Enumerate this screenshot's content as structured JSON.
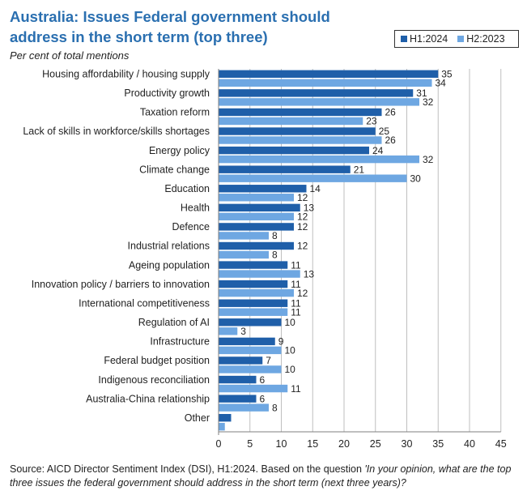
{
  "chart_data": {
    "type": "bar",
    "orientation": "horizontal",
    "title": "Australia: Issues Federal government should address in the short term (top three)",
    "subtitle": "Per cent of total mentions",
    "categories": [
      "Housing affordability / housing supply",
      "Productivity growth",
      "Taxation reform",
      "Lack of skills in workforce/skills shortages",
      "Energy policy",
      "Climate change",
      "Education",
      "Health",
      "Defence",
      "Industrial relations",
      "Ageing population",
      "Innovation policy / barriers to innovation",
      "International competitiveness",
      "Regulation of AI",
      "Infrastructure",
      "Federal budget position",
      "Indigenous reconciliation",
      "Australia-China relationship",
      "Other"
    ],
    "series": [
      {
        "name": "H1:2024",
        "color": "#1f5fa9",
        "values": [
          35,
          31,
          26,
          25,
          24,
          21,
          14,
          13,
          12,
          12,
          11,
          11,
          11,
          10,
          9,
          7,
          6,
          6,
          2
        ]
      },
      {
        "name": "H2:2023",
        "color": "#6ea7e2",
        "values": [
          34,
          32,
          23,
          26,
          32,
          30,
          12,
          12,
          8,
          8,
          13,
          12,
          11,
          3,
          10,
          10,
          11,
          8,
          1
        ]
      }
    ],
    "data_labels": {
      "H1:2024": [
        "35",
        "31",
        "26",
        "25",
        "24",
        "21",
        "14",
        "13",
        "12",
        "12",
        "11",
        "11",
        "11",
        "10",
        "9",
        "7",
        "6",
        "6",
        ""
      ],
      "H2:2023": [
        "34",
        "32",
        "23",
        "26",
        "32",
        "30",
        "12",
        "12",
        "8",
        "8",
        "13",
        "12",
        "11",
        "3",
        "10",
        "10",
        "11",
        "8",
        ""
      ]
    },
    "xlim": [
      0,
      45
    ],
    "xticks": [
      0,
      5,
      10,
      15,
      20,
      25,
      30,
      35,
      40,
      45
    ],
    "grid": "vertical",
    "legend_position": "top-right",
    "xlabel": "",
    "ylabel": ""
  },
  "footnote": {
    "prefix": "Source: AICD Director Sentiment Index (DSI), H1:2024.  Based on the question ",
    "question": "'In your opinion, what are the top three issues the federal government should address in the short term (next three years)?"
  }
}
